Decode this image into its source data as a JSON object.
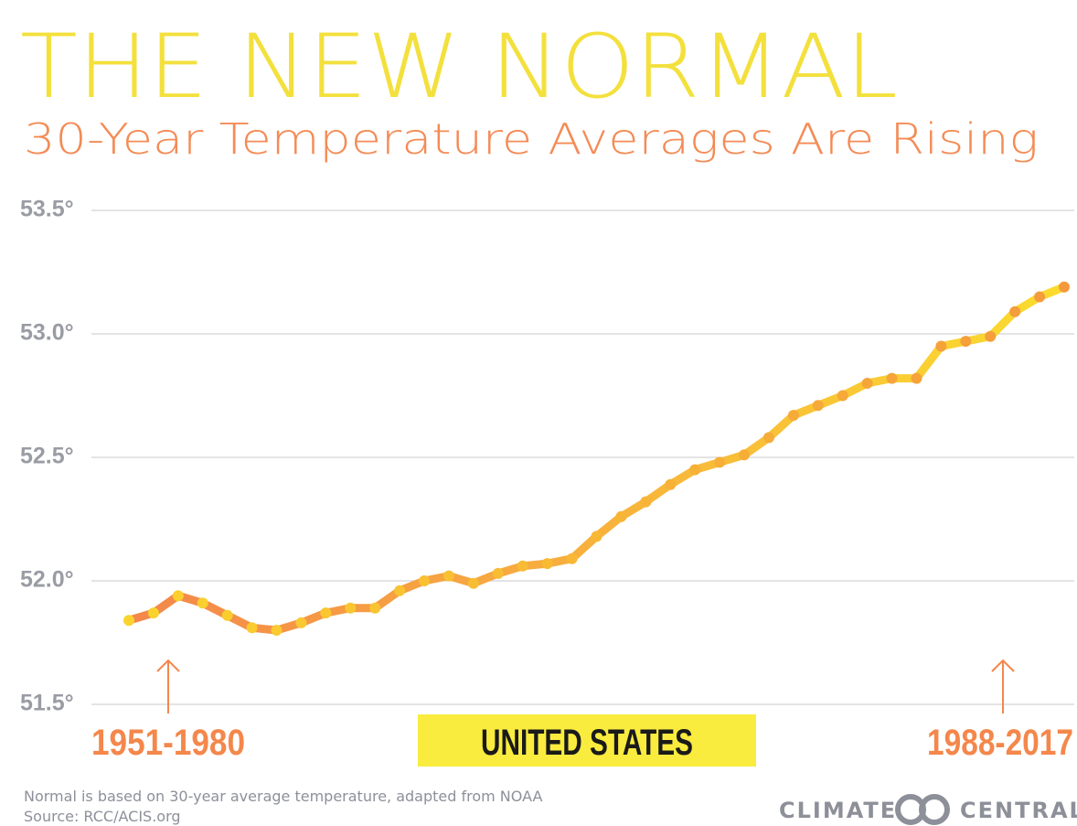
{
  "chart_data": {
    "type": "line",
    "title": "THE NEW NORMAL",
    "subtitle": "30-Year Temperature Averages Are Rising",
    "categories": [
      null,
      null,
      null,
      null,
      null,
      null,
      null,
      null,
      null,
      null,
      null,
      null,
      null,
      null,
      null,
      null,
      null,
      null,
      null,
      null,
      null,
      null,
      null,
      null,
      null,
      null,
      null,
      null,
      null,
      null,
      null,
      null,
      null,
      null,
      null,
      null,
      null,
      null,
      null
    ],
    "series": [
      {
        "line_colors": [
          "#f4874b",
          "#fbdc2e"
        ],
        "dot_colors": [
          "#fbd32e",
          "#f49a3c"
        ],
        "values": [
          51.84,
          51.87,
          51.94,
          51.91,
          51.86,
          51.81,
          51.8,
          51.83,
          51.87,
          51.89,
          51.89,
          51.96,
          52.0,
          52.02,
          51.99,
          52.03,
          52.06,
          52.07,
          52.09,
          52.18,
          52.26,
          52.32,
          52.39,
          52.45,
          52.48,
          52.51,
          52.58,
          52.67,
          52.71,
          52.75,
          52.8,
          52.82,
          52.82,
          52.95,
          52.97,
          52.99,
          53.09,
          53.15,
          53.19
        ]
      }
    ],
    "ylim": [
      51.5,
      53.5
    ],
    "yticks": [
      {
        "value": 51.5,
        "label": "51.5°"
      },
      {
        "value": 52.0,
        "label": "52.0°"
      },
      {
        "value": 52.5,
        "label": "52.5°"
      },
      {
        "value": 53.0,
        "label": "53.0°"
      },
      {
        "value": 53.5,
        "label": "53.5°"
      }
    ],
    "grid": true,
    "annotations": {
      "start": "1951-1980",
      "end": "1988-2017",
      "region": "UNITED STATES"
    },
    "footnote": [
      "Normal is based on 30-year average temperature, adapted from NOAA",
      "Source: RCC/ACIS.org"
    ],
    "logo": [
      "CLIMATE",
      "CENTRAL"
    ]
  }
}
